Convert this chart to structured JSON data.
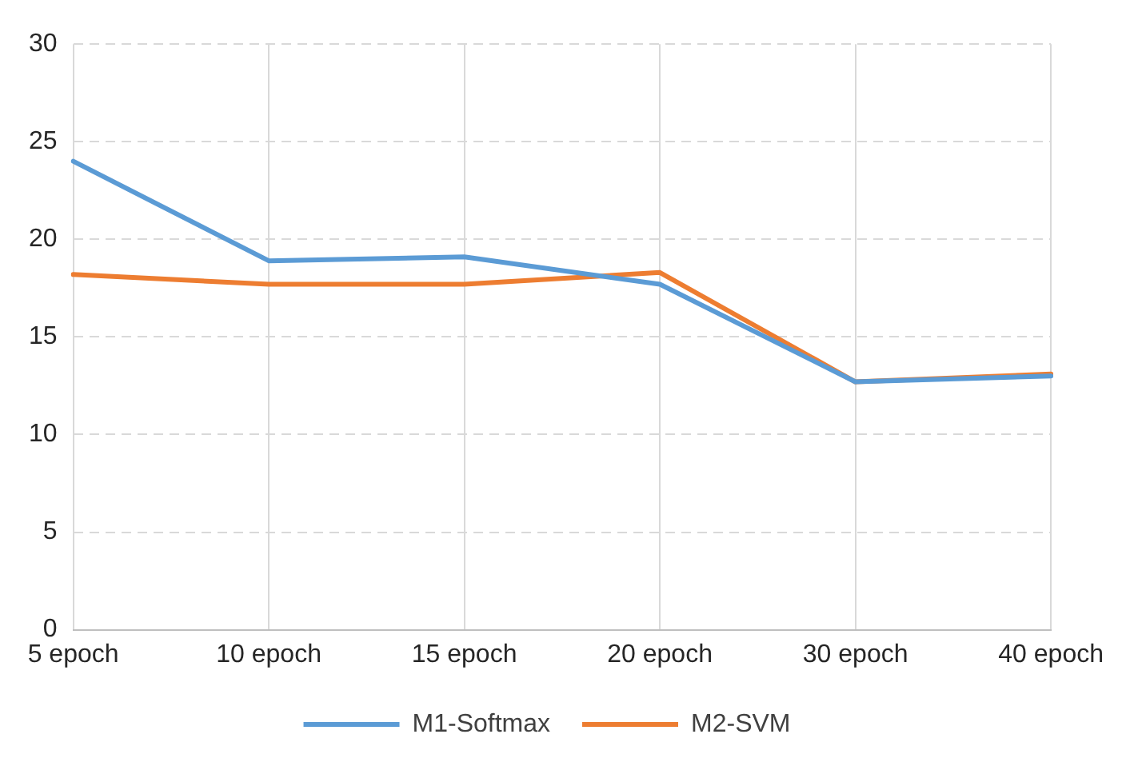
{
  "chart_data": {
    "type": "line",
    "categories": [
      "5 epoch",
      "10 epoch",
      "15 epoch",
      "20 epoch",
      "30 epoch",
      "40 epoch"
    ],
    "series": [
      {
        "name": "M1-Softmax",
        "color": "#5b9bd5",
        "values": [
          24,
          18.9,
          19.1,
          17.7,
          12.7,
          13.0
        ]
      },
      {
        "name": "M2-SVM",
        "color": "#ed7d31",
        "values": [
          18.2,
          17.7,
          17.7,
          18.3,
          12.7,
          13.1
        ]
      }
    ],
    "ylim": [
      0,
      30
    ],
    "yticks": [
      0,
      5,
      10,
      15,
      20,
      25,
      30
    ],
    "grid": true,
    "legend": "bottom",
    "marker": "none",
    "line_style": "solid"
  }
}
